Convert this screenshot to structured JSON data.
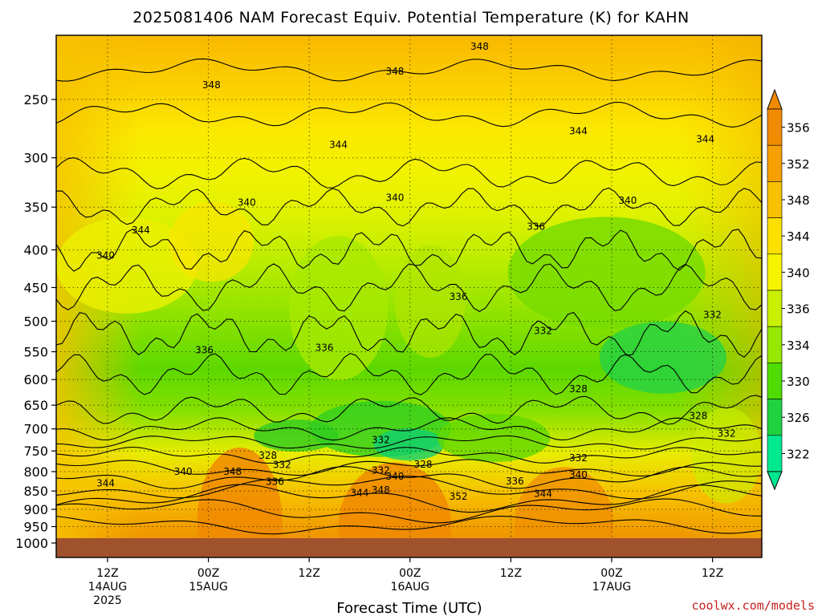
{
  "chart_data": {
    "type": "contour",
    "title": "2025081406 NAM Forecast Equiv. Potential Temperature (K) for KAHN",
    "xlabel": "Forecast Time (UTC)",
    "ylabel": "",
    "y_scale": "log-pressure",
    "y_unit": "hPa",
    "grid": true,
    "y_ticks": [
      250,
      300,
      350,
      400,
      450,
      500,
      550,
      600,
      650,
      700,
      750,
      800,
      850,
      900,
      950,
      1000
    ],
    "x_ticks": [
      {
        "line1": "12Z",
        "line2": "14AUG",
        "line3": "2025"
      },
      {
        "line1": "00Z",
        "line2": "15AUG",
        "line3": ""
      },
      {
        "line1": "12Z",
        "line2": "",
        "line3": ""
      },
      {
        "line1": "00Z",
        "line2": "16AUG",
        "line3": ""
      },
      {
        "line1": "12Z",
        "line2": "",
        "line3": ""
      },
      {
        "line1": "00Z",
        "line2": "17AUG",
        "line3": ""
      },
      {
        "line1": "12Z",
        "line2": "",
        "line3": ""
      }
    ],
    "colorbar": {
      "labels": [
        "356",
        "352",
        "348",
        "344",
        "340",
        "336",
        "334",
        "330",
        "326",
        "322"
      ],
      "colors": [
        "#f08a00",
        "#f5a000",
        "#f8c000",
        "#fbe000",
        "#f5f500",
        "#c8f000",
        "#96e800",
        "#50dc00",
        "#20d240",
        "#00e890"
      ]
    },
    "contour_labels": [
      {
        "text": "348",
        "p": 212,
        "t": 0.6
      },
      {
        "text": "348",
        "p": 229,
        "t": 0.48
      },
      {
        "text": "348",
        "p": 239,
        "t": 0.22
      },
      {
        "text": "344",
        "p": 288,
        "t": 0.4
      },
      {
        "text": "344",
        "p": 276,
        "t": 0.74
      },
      {
        "text": "344",
        "p": 283,
        "t": 0.92
      },
      {
        "text": "340",
        "p": 345,
        "t": 0.27
      },
      {
        "text": "340",
        "p": 340,
        "t": 0.48
      },
      {
        "text": "340",
        "p": 343,
        "t": 0.81
      },
      {
        "text": "344",
        "p": 376,
        "t": 0.12
      },
      {
        "text": "340",
        "p": 407,
        "t": 0.07
      },
      {
        "text": "336",
        "p": 372,
        "t": 0.68
      },
      {
        "text": "336",
        "p": 463,
        "t": 0.57
      },
      {
        "text": "332",
        "p": 490,
        "t": 0.93
      },
      {
        "text": "332",
        "p": 515,
        "t": 0.69
      },
      {
        "text": "336",
        "p": 547,
        "t": 0.21
      },
      {
        "text": "336",
        "p": 543,
        "t": 0.38
      },
      {
        "text": "328",
        "p": 618,
        "t": 0.74
      },
      {
        "text": "328",
        "p": 672,
        "t": 0.91
      },
      {
        "text": "332",
        "p": 725,
        "t": 0.46
      },
      {
        "text": "332",
        "p": 710,
        "t": 0.95
      },
      {
        "text": "328",
        "p": 761,
        "t": 0.3
      },
      {
        "text": "328",
        "p": 782,
        "t": 0.52
      },
      {
        "text": "332",
        "p": 767,
        "t": 0.74
      },
      {
        "text": "332",
        "p": 783,
        "t": 0.32
      },
      {
        "text": "332",
        "p": 797,
        "t": 0.46
      },
      {
        "text": "340",
        "p": 800,
        "t": 0.18
      },
      {
        "text": "348",
        "p": 800,
        "t": 0.25
      },
      {
        "text": "340",
        "p": 812,
        "t": 0.48
      },
      {
        "text": "340",
        "p": 808,
        "t": 0.74
      },
      {
        "text": "336",
        "p": 824,
        "t": 0.65
      },
      {
        "text": "336",
        "p": 826,
        "t": 0.31
      },
      {
        "text": "344",
        "p": 830,
        "t": 0.07
      },
      {
        "text": "348",
        "p": 848,
        "t": 0.46
      },
      {
        "text": "344",
        "p": 855,
        "t": 0.43
      },
      {
        "text": "352",
        "p": 865,
        "t": 0.57
      },
      {
        "text": "344",
        "p": 857,
        "t": 0.69
      }
    ]
  },
  "credit": "coolwx.com/models"
}
